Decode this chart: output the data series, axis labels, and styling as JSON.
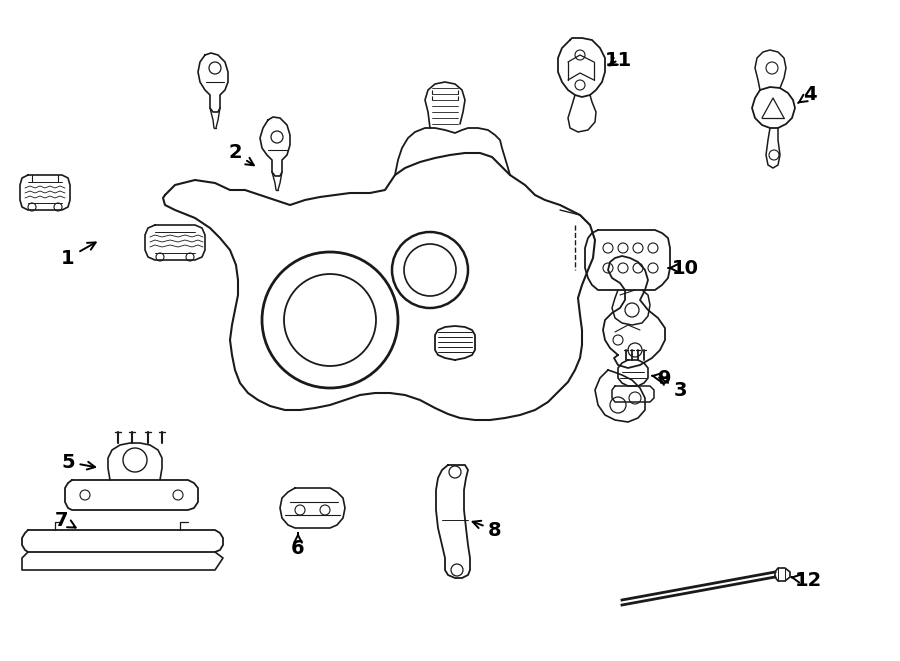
{
  "background_color": "#ffffff",
  "line_color": "#1a1a1a",
  "figsize": [
    9.0,
    6.61
  ],
  "dpi": 100,
  "title_fontsize": 11
}
